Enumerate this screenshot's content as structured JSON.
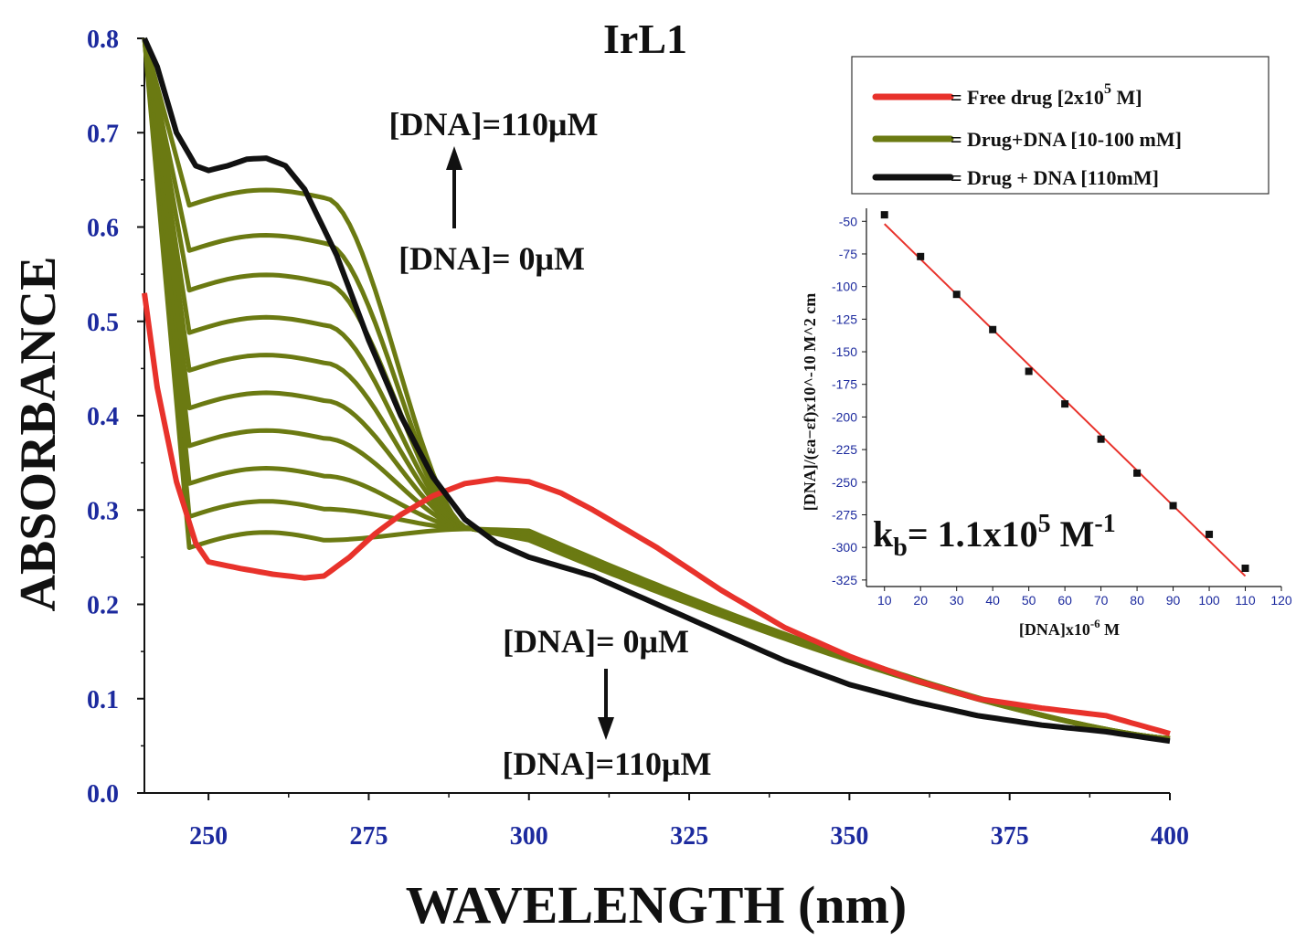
{
  "chart_data": [
    {
      "type": "line",
      "title": "IrL1",
      "xlabel": "WAVELENGTH (nm)",
      "ylabel": "ABSORBANCE",
      "xlim": [
        240,
        400
      ],
      "ylim": [
        0.0,
        0.8
      ],
      "xticks": [
        250,
        275,
        300,
        325,
        350,
        375,
        400
      ],
      "xtick_labels": [
        "250",
        "275",
        "300",
        "325",
        "350",
        "375",
        "400"
      ],
      "yticks": [
        0.0,
        0.1,
        0.2,
        0.3,
        0.4,
        0.5,
        0.6,
        0.7,
        0.8
      ],
      "ytick_labels": [
        "0.0",
        "0.1",
        "0.2",
        "0.3",
        "0.4",
        "0.5",
        "0.6",
        "0.7",
        "0.8"
      ],
      "legend_position": "top-right",
      "legend": [
        {
          "label": "= Free drug [2x10",
          "sup": "5",
          "suffix": " M]",
          "color": "#e8322b"
        },
        {
          "label": "= Drug+DNA [10-100 mM]",
          "color": "#6b7a12"
        },
        {
          "label": "= Drug + DNA [110mM]",
          "color": "#111111"
        }
      ],
      "annotations": {
        "top_upper": "[DNA]=110μM",
        "top_lower": "[DNA]= 0μM",
        "bottom_upper": "[DNA]= 0μM",
        "bottom_lower": "[DNA]=110μM"
      },
      "series": [
        {
          "name": "Free drug [2x10^5 M]",
          "color": "#e8322b",
          "x": [
            240,
            242,
            245,
            248,
            250,
            255,
            260,
            265,
            268,
            272,
            276,
            280,
            285,
            290,
            295,
            300,
            305,
            310,
            320,
            330,
            340,
            350,
            360,
            370,
            380,
            390,
            400
          ],
          "y": [
            0.53,
            0.43,
            0.33,
            0.265,
            0.245,
            0.238,
            0.232,
            0.228,
            0.23,
            0.25,
            0.275,
            0.295,
            0.315,
            0.328,
            0.333,
            0.33,
            0.318,
            0.3,
            0.26,
            0.215,
            0.175,
            0.145,
            0.12,
            0.1,
            0.09,
            0.082,
            0.063
          ]
        },
        {
          "name": "Drug + DNA [110mM]",
          "color": "#111111",
          "x": [
            240,
            242,
            245,
            248,
            250,
            253,
            256,
            259,
            262,
            265,
            270,
            275,
            280,
            285,
            290,
            295,
            300,
            310,
            320,
            330,
            340,
            350,
            360,
            370,
            380,
            390,
            400
          ],
          "y": [
            0.8,
            0.77,
            0.7,
            0.665,
            0.66,
            0.665,
            0.672,
            0.673,
            0.665,
            0.64,
            0.57,
            0.48,
            0.4,
            0.335,
            0.29,
            0.265,
            0.25,
            0.23,
            0.2,
            0.17,
            0.14,
            0.115,
            0.097,
            0.082,
            0.072,
            0.065,
            0.055
          ]
        }
      ],
      "green_family": {
        "name": "Drug+DNA [10-100 mM]",
        "color": "#6b7a12",
        "count": 10,
        "plateau_values": [
          0.272,
          0.305,
          0.34,
          0.38,
          0.42,
          0.46,
          0.5,
          0.545,
          0.587,
          0.635
        ],
        "isosbestic_x": 291,
        "isosbestic_y": 0.28,
        "shoulder_y": 0.278,
        "tail_y_at_400": 0.058
      }
    },
    {
      "type": "scatter",
      "xlabel": "[DNA]x10",
      "xlabel_sup": "-6",
      "xlabel_suffix": " M",
      "ylabel": "[DNA]/(εa−εf)x10^-10 M^2 cm",
      "xlim": [
        5,
        120
      ],
      "ylim": [
        -330,
        -40
      ],
      "xticks": [
        10,
        20,
        30,
        40,
        50,
        60,
        70,
        80,
        90,
        100,
        110,
        120
      ],
      "yticks": [
        -50,
        -75,
        -100,
        -125,
        -150,
        -175,
        -200,
        -225,
        -250,
        -275,
        -300,
        -325
      ],
      "annotation": {
        "text": "k",
        "sub": "b",
        "mid": "= 1.1x10",
        "sup": "5",
        "suffix": " M",
        "sup2": "-1"
      },
      "points": {
        "x": [
          10,
          20,
          30,
          40,
          50,
          60,
          70,
          80,
          90,
          100,
          110
        ],
        "y": [
          -45,
          -77,
          -106,
          -133,
          -165,
          -190,
          -217,
          -243,
          -268,
          -290,
          -316
        ]
      },
      "fit": {
        "x": [
          10,
          110
        ],
        "y": [
          -52,
          -322
        ],
        "color": "#e8322b"
      }
    }
  ]
}
